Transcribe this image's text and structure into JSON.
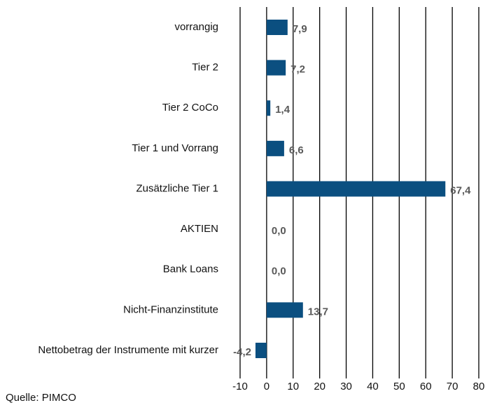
{
  "chart_data": {
    "type": "bar",
    "orientation": "horizontal",
    "categories": [
      "vorrangig",
      "Tier 2",
      "Tier 2 CoCo",
      "Tier 1 und Vorrang",
      "Zusätzliche Tier 1",
      "AKTIEN",
      "Bank Loans",
      "Nicht-Finanzinstitute",
      "Nettobetrag der Instrumente mit kurzer"
    ],
    "values": [
      7.9,
      7.2,
      1.4,
      6.6,
      67.4,
      0.0,
      0.0,
      13.7,
      -4.2
    ],
    "value_labels": [
      "7,9",
      "7,2",
      "1,4",
      "6,6",
      "67,4",
      "0,0",
      "0,0",
      "13,7",
      "-4,2"
    ],
    "color": "#0b4f80",
    "xlim": [
      -10,
      80
    ],
    "xticks": [
      -10,
      0,
      10,
      20,
      30,
      40,
      50,
      60,
      70,
      80
    ],
    "grid": true,
    "note": "Quelle: PIMCO"
  }
}
